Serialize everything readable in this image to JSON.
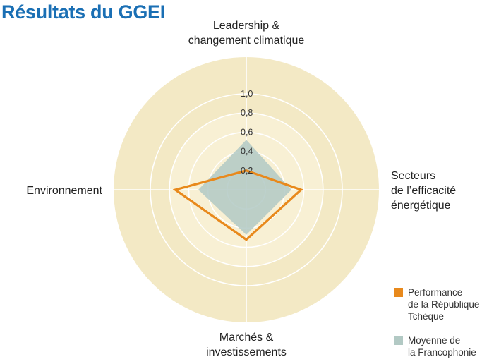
{
  "title": "Résultats du GGEI",
  "chart_data": {
    "type": "radar",
    "axes": [
      {
        "lines": [
          "Leadership &",
          "changement climatique"
        ]
      },
      {
        "lines": [
          "Secteurs",
          "de l’efficacité",
          "énergétique"
        ]
      },
      {
        "lines": [
          "Marchés &",
          "investissements"
        ]
      },
      {
        "lines": [
          "Environnement"
        ]
      }
    ],
    "ticks": [
      "0,2",
      "0,4",
      "0,6",
      "0,8",
      "1,0"
    ],
    "tick_values": [
      0.2,
      0.4,
      0.6,
      0.8,
      1.0
    ],
    "range": [
      0,
      1.0
    ],
    "series": [
      {
        "name": "Performance de la République Tchèque",
        "values": [
          0.2,
          0.57,
          0.52,
          0.74
        ],
        "style": "outline",
        "color": "#e8891c"
      },
      {
        "name": "Moyenne de la Francophonie",
        "values": [
          0.52,
          0.47,
          0.47,
          0.5
        ],
        "style": "fill",
        "color": "#b2c9c4"
      }
    ],
    "background_color": "#f3e9c5"
  },
  "legend": [
    {
      "lines": [
        "Performance",
        "de la République",
        "Tchèque"
      ],
      "color": "#e8891c"
    },
    {
      "lines": [
        "Moyenne de",
        "la Francophonie"
      ],
      "color": "#b2c9c4"
    }
  ]
}
